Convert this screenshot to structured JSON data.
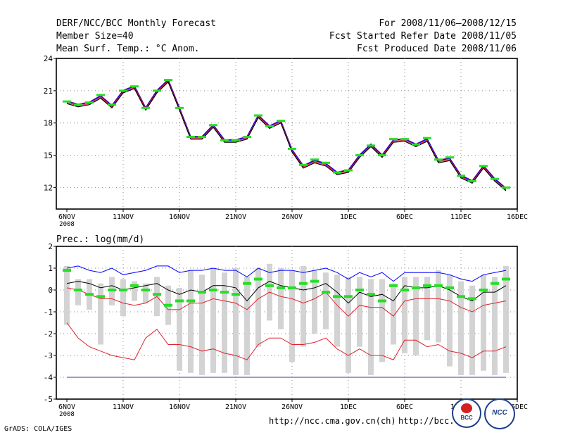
{
  "header": {
    "title": "DERF/NCC/BCC Monthly Forecast",
    "member_size": "Member Size=40",
    "variable": "Mean Surf. Temp.: °C Anom.",
    "period": "For 2008/11/06–2008/12/15",
    "started": "Fcst Started Refer Date 2008/11/05",
    "produced": "Fcst Produced Date 2008/11/06"
  },
  "footer": {
    "credit": "GrADS: COLA/IGES",
    "url1": "http://ncc.cma.gov.cn(ch)",
    "url2": "http://bcc.c",
    "logo_left": "BCC",
    "logo_right": "NCC"
  },
  "colors": {
    "blue": "#0000ff",
    "red": "#e0202c",
    "black": "#000000",
    "green": "#22e022",
    "gray": "#d3d3d3",
    "purple": "#800080"
  },
  "chart_data": [
    {
      "type": "line",
      "title": "Mean Surf. Temp.: °C Anom.",
      "x_tick_labels": [
        "6NOV\n2008",
        "11NOV",
        "16NOV",
        "21NOV",
        "26NOV",
        "1DEC",
        "6DEC",
        "11DEC",
        "16DEC"
      ],
      "ylim": [
        10,
        24
      ],
      "yticks": [
        12,
        15,
        18,
        21,
        24
      ],
      "grid": true,
      "series": [
        {
          "name": "ensemble mean",
          "values": [
            19.8,
            19.5,
            19.7,
            20.3,
            19.4,
            20.8,
            21.2,
            19.2,
            20.8,
            21.8,
            19.2,
            16.5,
            16.5,
            17.6,
            16.2,
            16.2,
            16.5,
            18.5,
            17.5,
            18.0,
            15.3,
            13.8,
            14.3,
            14.0,
            13.2,
            13.4,
            14.8,
            15.8,
            14.8,
            16.2,
            16.3,
            15.8,
            16.3,
            14.3,
            14.5,
            12.9,
            12.4,
            13.8,
            12.6,
            11.7
          ]
        },
        {
          "name": "ensemble members",
          "values": [
            20.0,
            19.7,
            19.9,
            20.5,
            19.6,
            21.0,
            21.4,
            19.4,
            21.0,
            22.0,
            19.4,
            16.7,
            16.7,
            17.8,
            16.4,
            16.4,
            16.7,
            18.7,
            17.7,
            18.2,
            15.5,
            14.0,
            14.5,
            14.2,
            13.4,
            13.6,
            15.0,
            16.0,
            15.0,
            16.4,
            16.5,
            16.0,
            16.5,
            14.5,
            14.7,
            13.1,
            12.6,
            14.0,
            12.8,
            11.9
          ]
        },
        {
          "name": "observed (green)",
          "values": [
            20.0,
            19.7,
            19.9,
            20.6,
            19.7,
            21.0,
            21.4,
            19.4,
            21.0,
            22.0,
            19.4,
            16.7,
            16.7,
            17.8,
            16.4,
            16.4,
            16.7,
            18.7,
            17.7,
            18.2,
            15.6,
            14.1,
            14.6,
            14.3,
            13.4,
            13.6,
            15.0,
            15.9,
            15.0,
            16.5,
            16.5,
            16.0,
            16.6,
            14.6,
            14.8,
            13.1,
            12.6,
            14.0,
            12.8,
            12.0
          ]
        }
      ]
    },
    {
      "type": "line",
      "title": "Prec.: log(mm/d)",
      "x_tick_labels": [
        "6NOV\n2008",
        "11NOV",
        "16NOV",
        "21NOV",
        "26NOV",
        "1DEC",
        "6DEC",
        "11DEC",
        "16DEC"
      ],
      "ylim": [
        -5,
        2
      ],
      "yticks": [
        -5,
        -4,
        -3,
        -2,
        -1,
        0,
        1,
        2
      ],
      "grid": true,
      "series": [
        {
          "name": "max (blue)",
          "values": [
            1.0,
            1.1,
            0.9,
            0.8,
            1.0,
            0.7,
            0.8,
            0.9,
            1.1,
            1.1,
            0.8,
            0.9,
            0.9,
            1.0,
            0.9,
            0.9,
            0.6,
            1.0,
            0.8,
            0.9,
            0.9,
            0.8,
            0.9,
            1.0,
            0.8,
            0.5,
            0.8,
            0.6,
            0.8,
            0.4,
            0.8,
            0.8,
            0.8,
            0.8,
            0.7,
            0.5,
            0.4,
            0.7,
            0.8,
            0.9
          ]
        },
        {
          "name": "mean (black)",
          "values": [
            0.3,
            0.4,
            0.3,
            0.1,
            0.2,
            0.0,
            0.1,
            0.2,
            0.3,
            0.0,
            -0.2,
            0.0,
            -0.1,
            0.2,
            0.2,
            0.1,
            -0.5,
            0.1,
            0.4,
            0.2,
            0.1,
            0.0,
            0.1,
            0.3,
            -0.1,
            -0.6,
            -0.1,
            -0.3,
            -0.2,
            -0.5,
            0.2,
            0.1,
            0.1,
            0.2,
            0.0,
            -0.3,
            -0.5,
            -0.1,
            -0.1,
            0.2
          ]
        },
        {
          "name": "upper red",
          "values": [
            0.1,
            0.0,
            -0.2,
            -0.4,
            -0.4,
            -0.6,
            -0.7,
            -0.6,
            -0.3,
            -0.9,
            -0.9,
            -0.6,
            -0.6,
            -0.4,
            -0.5,
            -0.6,
            -0.9,
            -0.4,
            -0.1,
            -0.3,
            -0.4,
            -0.6,
            -0.4,
            -0.1,
            -0.7,
            -1.2,
            -0.7,
            -0.8,
            -0.8,
            -1.2,
            -0.5,
            -0.4,
            -0.4,
            -0.4,
            -0.5,
            -0.8,
            -1.0,
            -0.7,
            -0.6,
            -0.5
          ]
        },
        {
          "name": "lower red",
          "values": [
            -1.5,
            -2.2,
            -2.6,
            -2.8,
            -3.0,
            -3.1,
            -3.2,
            -2.2,
            -1.8,
            -2.5,
            -2.5,
            -2.6,
            -2.8,
            -2.7,
            -2.9,
            -3.0,
            -3.2,
            -2.5,
            -2.2,
            -2.2,
            -2.5,
            -2.5,
            -2.4,
            -2.2,
            -2.7,
            -3.0,
            -2.7,
            -3.0,
            -3.0,
            -3.2,
            -2.3,
            -2.3,
            -2.6,
            -2.5,
            -2.8,
            -2.9,
            -3.1,
            -2.8,
            -2.8,
            -2.6
          ]
        },
        {
          "name": "climatology (purple)",
          "values": [
            -4.0,
            -4.0,
            -4.0,
            -4.0,
            -4.0,
            -4.0,
            -4.0,
            -4.0,
            -4.0,
            -4.0,
            -4.0,
            -4.0,
            -4.0,
            -4.0,
            -4.0,
            -4.0,
            -4.0,
            -4.0,
            -4.0,
            -4.0,
            -4.0,
            -4.0,
            -4.0,
            -4.0,
            -4.0,
            -4.0,
            -4.0,
            -4.0,
            -4.0,
            -4.0,
            -4.0,
            -4.0,
            -4.0,
            -4.0,
            -4.0,
            -4.0,
            -4.0,
            -4.0,
            -4.0,
            -4.0
          ]
        },
        {
          "name": "observed (green)",
          "values": [
            0.9,
            0.0,
            -0.2,
            -0.3,
            0.0,
            0.0,
            0.2,
            0.0,
            -0.2,
            -0.7,
            -0.5,
            -0.5,
            -0.1,
            0.0,
            -0.1,
            -0.2,
            0.3,
            0.5,
            0.2,
            0.1,
            0.1,
            0.3,
            0.4,
            -0.1,
            -0.3,
            -0.3,
            0.0,
            -0.2,
            -0.5,
            0.2,
            0.0,
            0.1,
            0.2,
            0.2,
            0.1,
            -0.3,
            -0.4,
            0.0,
            0.3,
            0.5
          ]
        },
        {
          "name": "spread top (gray)",
          "values": [
            1.1,
            0.5,
            0.5,
            0.3,
            0.6,
            0.5,
            0.4,
            0.3,
            0.6,
            0.2,
            0.1,
            0.9,
            0.7,
            1.0,
            0.8,
            1.0,
            0.6,
            1.0,
            1.2,
            1.0,
            0.9,
            1.1,
            0.9,
            0.8,
            0.7,
            0.6,
            0.6,
            0.5,
            0.5,
            0.3,
            0.6,
            0.6,
            0.6,
            0.9,
            0.7,
            0.4,
            0.2,
            0.7,
            0.6,
            1.1
          ]
        },
        {
          "name": "spread bottom (gray)",
          "values": [
            -1.6,
            -0.7,
            -0.9,
            -2.5,
            -0.7,
            -1.2,
            -0.5,
            -0.6,
            -1.2,
            -1.6,
            -3.7,
            -3.8,
            -3.9,
            -3.8,
            -3.8,
            -3.9,
            -3.9,
            -2.6,
            -1.4,
            -1.8,
            -3.3,
            -2.6,
            -2.0,
            -1.8,
            -2.6,
            -3.8,
            -2.6,
            -3.9,
            -3.3,
            -2.5,
            -2.9,
            -3.0,
            -2.3,
            -2.4,
            -3.5,
            -3.9,
            -3.9,
            -3.7,
            -3.9,
            -3.8
          ]
        }
      ]
    }
  ]
}
